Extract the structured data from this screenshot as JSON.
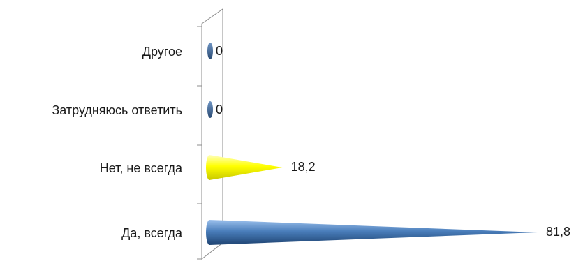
{
  "chart_data": {
    "type": "bar",
    "orientation": "horizontal",
    "shape": "cone",
    "categories": [
      "Да, всегда",
      "Нет, не всегда",
      "Затрудняюсь ответить",
      "Другое"
    ],
    "values": [
      81.8,
      18.2,
      0,
      0
    ],
    "value_labels": [
      "81,8",
      "18,2",
      "0",
      "0"
    ],
    "colors": [
      "#4a7ebb",
      "#ffff00",
      "#3a5f8c",
      "#3a5f8c"
    ],
    "xlim": [
      0,
      81.8
    ],
    "grid": false,
    "legend": "none"
  }
}
